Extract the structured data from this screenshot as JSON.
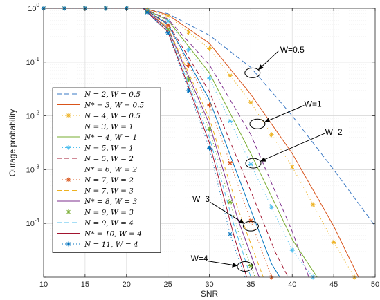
{
  "chart_data": {
    "type": "line",
    "title": "",
    "xlabel": "SNR",
    "ylabel": "Outage probability",
    "xlim": [
      10,
      50
    ],
    "ylim_log10": [
      -5,
      0
    ],
    "yscale": "log",
    "grid": true,
    "legend_placement": "bottom-left",
    "x_ticks": [
      "10",
      "15",
      "20",
      "25",
      "30",
      "35",
      "40",
      "45",
      "50"
    ],
    "y_ticks": [
      {
        "base": "10",
        "exp": "0",
        "log": 0
      },
      {
        "base": "10",
        "exp": "-1",
        "log": -1
      },
      {
        "base": "10",
        "exp": "-2",
        "log": -2
      },
      {
        "base": "10",
        "exp": "-3",
        "log": -3
      },
      {
        "base": "10",
        "exp": "-4",
        "log": -4
      }
    ],
    "marker_x": [
      10,
      12.5,
      15,
      17.5,
      20,
      22.5,
      25,
      27.5,
      30,
      32.5,
      35,
      37.5,
      40,
      42.5,
      45,
      47.5
    ],
    "series": [
      {
        "name": "N = 2, W = 0.5",
        "color": "#3a78c4",
        "dash": "7,4",
        "marker": null,
        "points": [
          [
            10,
            0
          ],
          [
            22,
            0
          ],
          [
            25,
            -0.1
          ],
          [
            30,
            -0.5
          ],
          [
            35,
            -1.1
          ],
          [
            40,
            -2
          ],
          [
            45,
            -3
          ],
          [
            50,
            -4.05
          ]
        ]
      },
      {
        "name": "N* = 3, W = 0.5",
        "color": "#d95319",
        "dash": null,
        "marker": null,
        "points": [
          [
            10,
            0
          ],
          [
            22,
            0
          ],
          [
            25,
            -0.12
          ],
          [
            30,
            -0.65
          ],
          [
            35,
            -1.6
          ],
          [
            40,
            -2.7
          ],
          [
            45,
            -4.05
          ],
          [
            48,
            -5
          ]
        ]
      },
      {
        "name": "N = 4, W = 0.5",
        "color": "#edb120",
        "dash": "1,3",
        "marker": "star",
        "points": [
          [
            10,
            0
          ],
          [
            22,
            0
          ],
          [
            25,
            -0.14
          ],
          [
            30,
            -0.75
          ],
          [
            35,
            -1.75
          ],
          [
            40,
            -2.95
          ],
          [
            45,
            -4.35
          ],
          [
            47.5,
            -5
          ]
        ]
      },
      {
        "name": "N = 3, W = 1",
        "color": "#7e2f8e",
        "dash": "7,4",
        "marker": null,
        "points": [
          [
            10,
            0
          ],
          [
            22,
            0
          ],
          [
            25,
            -0.2
          ],
          [
            30,
            -1.05
          ],
          [
            35,
            -2.35
          ],
          [
            40,
            -4.15
          ],
          [
            42,
            -5
          ]
        ]
      },
      {
        "name": "N* = 4, W = 1",
        "color": "#77ac30",
        "dash": null,
        "marker": null,
        "points": [
          [
            10,
            0
          ],
          [
            22,
            0
          ],
          [
            25,
            -0.22
          ],
          [
            30,
            -1.2
          ],
          [
            35,
            -2.7
          ],
          [
            40,
            -4.3
          ],
          [
            43,
            -5
          ]
        ]
      },
      {
        "name": "N = 5, W = 1",
        "color": "#4dbeee",
        "dash": "1,3",
        "marker": "star",
        "points": [
          [
            10,
            0
          ],
          [
            22,
            0
          ],
          [
            25,
            -0.24
          ],
          [
            30,
            -1.3
          ],
          [
            35,
            -2.9
          ],
          [
            40,
            -4.5
          ],
          [
            42.5,
            -5
          ]
        ]
      },
      {
        "name": "N = 5, W = 2",
        "color": "#a2142f",
        "dash": "7,4",
        "marker": null,
        "points": [
          [
            10,
            0
          ],
          [
            22,
            0
          ],
          [
            25,
            -0.28
          ],
          [
            30,
            -1.55
          ],
          [
            35,
            -3.4
          ],
          [
            38,
            -4.55
          ],
          [
            39.5,
            -5
          ]
        ]
      },
      {
        "name": "N* = 6, W = 2",
        "color": "#0072bd",
        "dash": null,
        "marker": null,
        "points": [
          [
            10,
            0
          ],
          [
            22,
            0
          ],
          [
            25,
            -0.3
          ],
          [
            30,
            -1.7
          ],
          [
            35,
            -3.75
          ],
          [
            37.5,
            -4.75
          ],
          [
            38.5,
            -5
          ]
        ]
      },
      {
        "name": "N = 7, W = 2",
        "color": "#d95319",
        "dash": "1,3",
        "marker": "star",
        "points": [
          [
            10,
            0
          ],
          [
            22,
            0
          ],
          [
            25,
            -0.32
          ],
          [
            30,
            -1.8
          ],
          [
            35,
            -3.95
          ],
          [
            37.5,
            -5
          ]
        ]
      },
      {
        "name": "N = 7, W = 3",
        "color": "#edb120",
        "dash": "7,4",
        "marker": null,
        "points": [
          [
            10,
            0
          ],
          [
            22,
            0
          ],
          [
            25,
            -0.36
          ],
          [
            30,
            -2.05
          ],
          [
            33.5,
            -3.75
          ],
          [
            36.5,
            -5
          ]
        ]
      },
      {
        "name": "N* = 8, W = 3",
        "color": "#7e2f8e",
        "dash": null,
        "marker": null,
        "points": [
          [
            10,
            0
          ],
          [
            22,
            0
          ],
          [
            25,
            -0.38
          ],
          [
            30,
            -2.15
          ],
          [
            33.5,
            -3.95
          ],
          [
            36,
            -5
          ]
        ]
      },
      {
        "name": "N = 9, W = 3",
        "color": "#77ac30",
        "dash": "1,3",
        "marker": "star",
        "points": [
          [
            10,
            0
          ],
          [
            22,
            0
          ],
          [
            25,
            -0.4
          ],
          [
            30,
            -2.25
          ],
          [
            33.5,
            -4.15
          ],
          [
            35.5,
            -5
          ]
        ]
      },
      {
        "name": "N = 9, W = 4",
        "color": "#4dbeee",
        "dash": "7,4",
        "marker": null,
        "points": [
          [
            10,
            0
          ],
          [
            22,
            0
          ],
          [
            25,
            -0.42
          ],
          [
            30,
            -2.4
          ],
          [
            33,
            -4.05
          ],
          [
            35,
            -5
          ]
        ]
      },
      {
        "name": "N* = 10, W = 4",
        "color": "#a2142f",
        "dash": null,
        "marker": null,
        "points": [
          [
            10,
            0
          ],
          [
            22,
            0
          ],
          [
            25,
            -0.44
          ],
          [
            30,
            -2.5
          ],
          [
            33,
            -4.25
          ],
          [
            34.5,
            -5
          ]
        ]
      },
      {
        "name": "N = 11, W = 4",
        "color": "#0072bd",
        "dash": "1,3",
        "marker": "star",
        "points": [
          [
            10,
            0
          ],
          [
            22,
            0
          ],
          [
            25,
            -0.46
          ],
          [
            30,
            -2.6
          ],
          [
            32.5,
            -4.2
          ],
          [
            34.3,
            -5
          ]
        ]
      }
    ],
    "annotations": [
      {
        "text": "W=0.5",
        "label_at": [
          40,
          -0.77
        ],
        "ellipse_at": [
          35.2,
          -1.2
        ],
        "arrow": true
      },
      {
        "text": "W=1",
        "label_at": [
          42.5,
          -1.78
        ],
        "ellipse_at": [
          35.8,
          -2.15
        ],
        "arrow": true
      },
      {
        "text": "W=2",
        "label_at": [
          45,
          -2.3
        ],
        "ellipse_at": [
          35.3,
          -2.88
        ],
        "arrow": true
      },
      {
        "text": "W=3",
        "label_at": [
          29,
          -3.55
        ],
        "ellipse_at": [
          35,
          -4.05
        ],
        "arrow": true
      },
      {
        "text": "W=4",
        "label_at": [
          28.8,
          -4.65
        ],
        "ellipse_at": [
          34.3,
          -4.8
        ],
        "arrow": true
      }
    ]
  }
}
